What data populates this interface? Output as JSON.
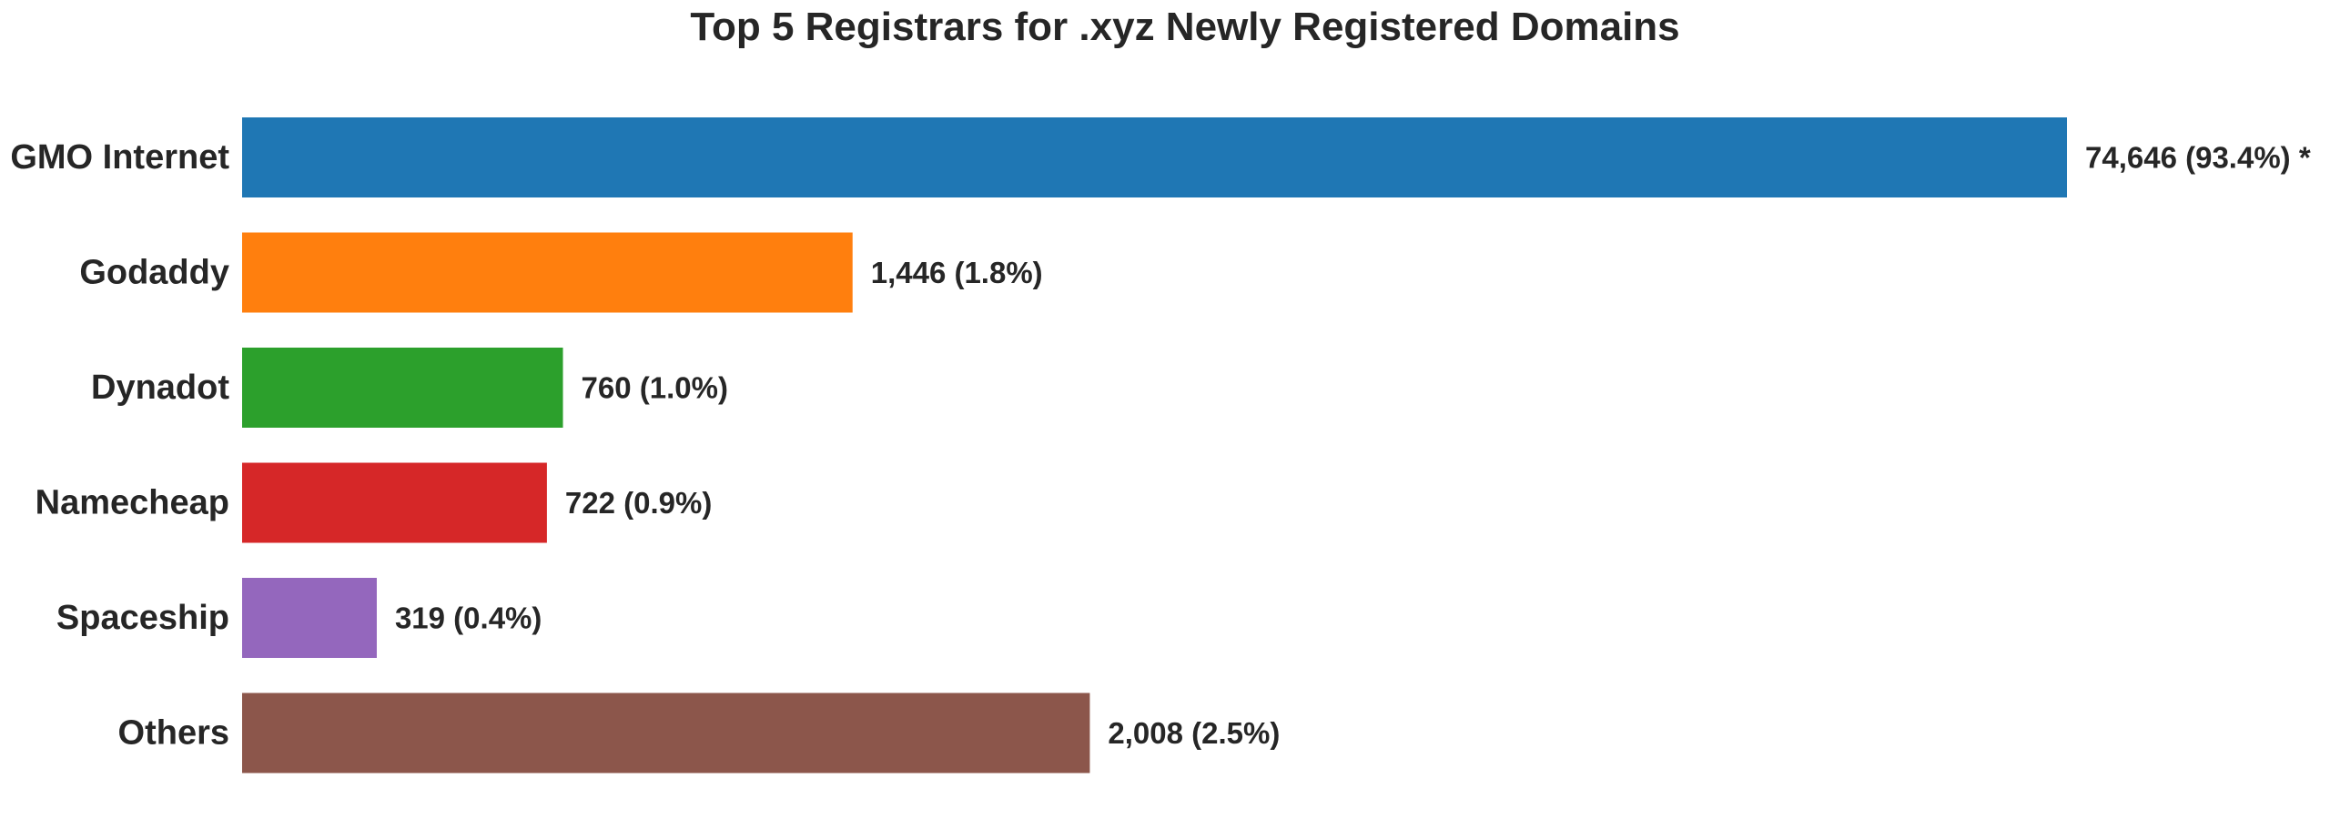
{
  "chart_data": {
    "type": "bar",
    "orientation": "horizontal",
    "title": "Top 5 Registrars for .xyz Newly Registered Domains",
    "xlabel": "",
    "ylabel": "",
    "grid": false,
    "xlim": [
      0,
      80000
    ],
    "categories": [
      "GMO Internet",
      "Godaddy",
      "Dynadot",
      "Namecheap",
      "Spaceship",
      "Others"
    ],
    "values": [
      74646,
      1446,
      760,
      722,
      319,
      2008
    ],
    "value_labels": [
      "74,646 (93.4%) *",
      "1,446 (1.8%)",
      "760 (1.0%)",
      "722 (0.9%)",
      "319 (0.4%)",
      "2,008 (2.5%)"
    ],
    "colors": [
      "#1f77b4",
      "#ff7f0e",
      "#2ca02c",
      "#d62728",
      "#9467bd",
      "#8c564b"
    ],
    "note": "GMO Internet bar shortened (axis break) — its length is not drawn to scale"
  }
}
